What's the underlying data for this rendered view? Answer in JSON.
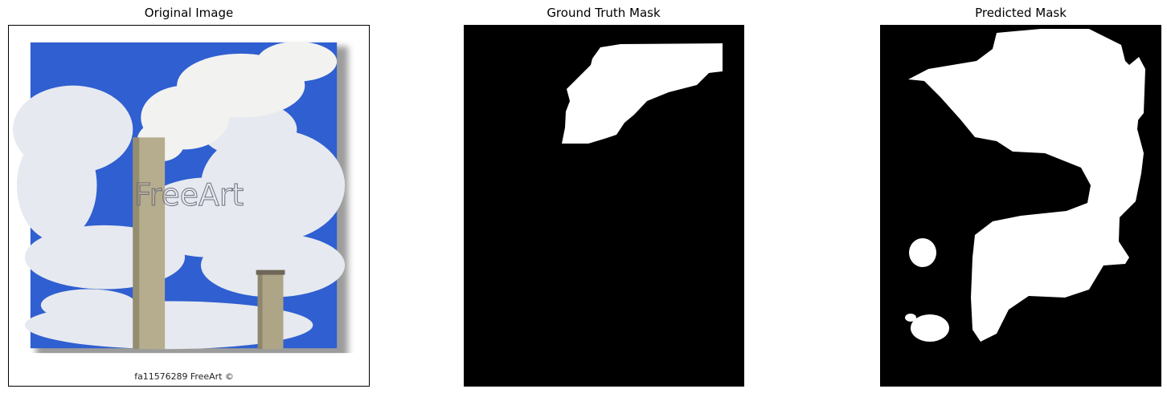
{
  "panels": [
    {
      "title": "Original Image"
    },
    {
      "title": "Ground Truth Mask"
    },
    {
      "title": "Predicted Mask"
    }
  ],
  "original_image": {
    "watermark_text": "FreeArt",
    "caption": "fa11576289 FreeArt ©",
    "colors": {
      "sky": "#2f5fd0",
      "cloud": "#e6e9ef",
      "smoke": "#f2f2f0",
      "stack": "#b6ad8e"
    }
  },
  "mask_colors": {
    "background": "#000000",
    "foreground": "#ffffff"
  }
}
